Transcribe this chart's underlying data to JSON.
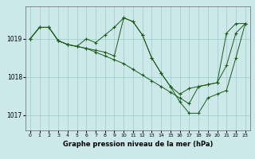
{
  "background_color": "#cce8e8",
  "grid_color": "#99cccc",
  "line_color": "#1a5c1a",
  "title": "Graphe pression niveau de la mer (hPa)",
  "xlim": [
    -0.5,
    23.5
  ],
  "ylim": [
    1016.6,
    1019.85
  ],
  "yticks": [
    1017,
    1018,
    1019
  ],
  "xticks": [
    0,
    1,
    2,
    3,
    4,
    5,
    6,
    7,
    8,
    9,
    10,
    11,
    12,
    13,
    14,
    15,
    16,
    17,
    18,
    19,
    20,
    21,
    22,
    23
  ],
  "series": [
    {
      "x": [
        0,
        1,
        2,
        3,
        4,
        5,
        6,
        7,
        8,
        9,
        10,
        11,
        12,
        13,
        14,
        15,
        16,
        17,
        18,
        19,
        20,
        21,
        22,
        23
      ],
      "y": [
        1019.0,
        1019.3,
        1019.3,
        1018.95,
        1018.85,
        1018.8,
        1018.75,
        1018.65,
        1018.55,
        1018.45,
        1018.35,
        1018.2,
        1018.05,
        1017.9,
        1017.75,
        1017.6,
        1017.45,
        1017.3,
        1017.75,
        1017.8,
        1017.85,
        1018.3,
        1019.15,
        1019.4
      ]
    },
    {
      "x": [
        0,
        1,
        2,
        3,
        4,
        5,
        6,
        7,
        8,
        9,
        10,
        11,
        12,
        13,
        14,
        15,
        16,
        17,
        18,
        19,
        20,
        21,
        22,
        23
      ],
      "y": [
        1019.0,
        1019.3,
        1019.3,
        1018.95,
        1018.85,
        1018.8,
        1019.0,
        1018.9,
        1019.1,
        1019.3,
        1019.55,
        1019.45,
        1019.1,
        1018.5,
        1018.1,
        1017.75,
        1017.35,
        1017.05,
        1017.05,
        1017.45,
        1017.55,
        1017.65,
        1018.5,
        1019.4
      ]
    },
    {
      "x": [
        0,
        1,
        2,
        3,
        4,
        5,
        6,
        7,
        8,
        9,
        10,
        11,
        12,
        13,
        14,
        15,
        16,
        17,
        18,
        19,
        20,
        21,
        22,
        23
      ],
      "y": [
        1019.0,
        1019.3,
        1019.3,
        1018.95,
        1018.85,
        1018.8,
        1018.75,
        1018.7,
        1018.65,
        1018.55,
        1019.55,
        1019.45,
        1019.1,
        1018.5,
        1018.1,
        1017.75,
        1017.55,
        1017.7,
        1017.75,
        1017.8,
        1017.85,
        1019.15,
        1019.4,
        1019.4
      ]
    }
  ]
}
